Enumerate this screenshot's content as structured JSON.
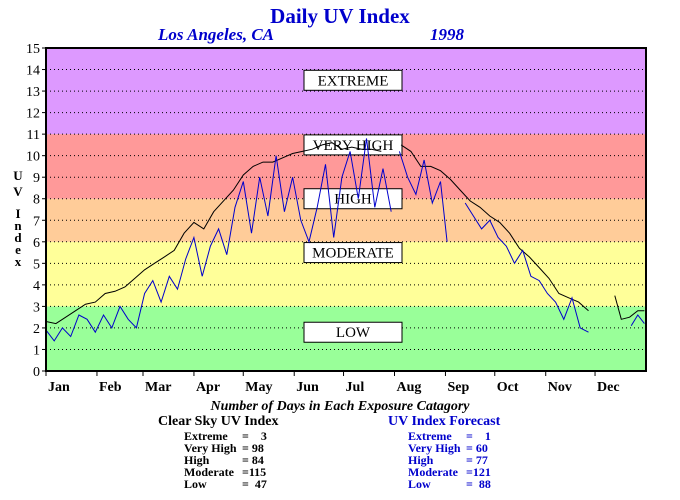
{
  "chart_data": {
    "type": "line",
    "title": "Daily UV Index",
    "location": "Los Angeles, CA",
    "year": "1998",
    "ylabel": "U V Index",
    "ylim": [
      0,
      15
    ],
    "yticks": [
      0,
      1,
      2,
      3,
      4,
      5,
      6,
      7,
      8,
      9,
      10,
      11,
      12,
      13,
      14,
      15
    ],
    "xlim": [
      0,
      365
    ],
    "months": [
      "Jan",
      "Feb",
      "Mar",
      "Apr",
      "May",
      "Jun",
      "Jul",
      "Aug",
      "Sep",
      "Oct",
      "Nov",
      "Dec"
    ],
    "month_start_days": [
      0,
      31,
      59,
      90,
      120,
      151,
      181,
      212,
      243,
      273,
      304,
      334
    ],
    "bands": [
      {
        "name": "LOW",
        "from": 0,
        "to": 3,
        "color": "#99ff99",
        "label_y": 1.8
      },
      {
        "name": "MODERATE",
        "from": 3,
        "to": 6,
        "color": "#ffff99",
        "label_y": 5.5
      },
      {
        "name": "HIGH",
        "from": 6,
        "to": 8,
        "color": "#ffcc99",
        "label_y": 8.0
      },
      {
        "name": "VERY HIGH",
        "from": 8,
        "to": 11,
        "color": "#ff9999",
        "label_y": 10.5
      },
      {
        "name": "EXTREME",
        "from": 11,
        "to": 15,
        "color": "#dd99ff",
        "label_y": 13.5
      }
    ],
    "series": [
      {
        "name": "Clear Sky UV Index",
        "color": "#000000",
        "points": [
          [
            0,
            2.3
          ],
          [
            6,
            2.2
          ],
          [
            12,
            2.5
          ],
          [
            18,
            2.8
          ],
          [
            24,
            3.1
          ],
          [
            30,
            3.2
          ],
          [
            36,
            3.6
          ],
          [
            42,
            3.7
          ],
          [
            48,
            3.9
          ],
          [
            54,
            4.3
          ],
          [
            60,
            4.7
          ],
          [
            66,
            5.0
          ],
          [
            72,
            5.3
          ],
          [
            78,
            5.6
          ],
          [
            84,
            6.4
          ],
          [
            90,
            6.9
          ],
          [
            96,
            6.6
          ],
          [
            102,
            7.4
          ],
          [
            108,
            7.9
          ],
          [
            114,
            8.4
          ],
          [
            120,
            9.1
          ],
          [
            126,
            9.5
          ],
          [
            132,
            9.7
          ],
          [
            138,
            9.7
          ],
          [
            144,
            9.9
          ],
          [
            150,
            10.1
          ],
          [
            156,
            10.2
          ],
          [
            162,
            10.3
          ],
          [
            168,
            10.5
          ],
          [
            174,
            10.6
          ],
          [
            180,
            10.3
          ],
          [
            186,
            10.4
          ],
          [
            192,
            10.3
          ],
          [
            198,
            10.3
          ],
          [
            204,
            10.2
          ],
          [
            212,
            null
          ],
          [
            216,
            10.5
          ],
          [
            222,
            10.2
          ],
          [
            228,
            9.5
          ],
          [
            234,
            9.5
          ],
          [
            240,
            9.3
          ],
          [
            246,
            8.9
          ],
          [
            252,
            8.4
          ],
          [
            258,
            7.9
          ],
          [
            264,
            7.6
          ],
          [
            270,
            7.2
          ],
          [
            276,
            6.9
          ],
          [
            282,
            6.4
          ],
          [
            288,
            5.7
          ],
          [
            294,
            5.3
          ],
          [
            300,
            4.8
          ],
          [
            306,
            4.3
          ],
          [
            312,
            3.6
          ],
          [
            318,
            3.4
          ],
          [
            324,
            3.2
          ],
          [
            330,
            2.8
          ],
          [
            335,
            null
          ],
          [
            346,
            3.5
          ],
          [
            350,
            2.4
          ],
          [
            355,
            2.5
          ],
          [
            360,
            2.8
          ],
          [
            364,
            2.8
          ]
        ]
      },
      {
        "name": "UV Index Forecast",
        "color": "#0000cc",
        "points": [
          [
            0,
            1.9
          ],
          [
            5,
            1.4
          ],
          [
            10,
            2.0
          ],
          [
            15,
            1.6
          ],
          [
            20,
            2.6
          ],
          [
            25,
            2.4
          ],
          [
            30,
            1.8
          ],
          [
            35,
            2.6
          ],
          [
            40,
            2.0
          ],
          [
            45,
            3.0
          ],
          [
            50,
            2.4
          ],
          [
            55,
            2.0
          ],
          [
            60,
            3.6
          ],
          [
            65,
            4.2
          ],
          [
            70,
            3.2
          ],
          [
            75,
            4.4
          ],
          [
            80,
            3.8
          ],
          [
            85,
            5.2
          ],
          [
            90,
            6.2
          ],
          [
            95,
            4.4
          ],
          [
            100,
            5.8
          ],
          [
            105,
            6.6
          ],
          [
            110,
            5.4
          ],
          [
            115,
            7.6
          ],
          [
            120,
            8.8
          ],
          [
            125,
            6.4
          ],
          [
            130,
            9.0
          ],
          [
            135,
            7.2
          ],
          [
            140,
            10.0
          ],
          [
            145,
            7.4
          ],
          [
            150,
            9.0
          ],
          [
            155,
            7.0
          ],
          [
            160,
            6.0
          ],
          [
            165,
            7.6
          ],
          [
            170,
            9.6
          ],
          [
            175,
            6.2
          ],
          [
            180,
            9.0
          ],
          [
            185,
            10.2
          ],
          [
            190,
            8.0
          ],
          [
            195,
            10.8
          ],
          [
            200,
            7.6
          ],
          [
            205,
            9.4
          ],
          [
            210,
            7.4
          ],
          [
            212,
            null
          ],
          [
            215,
            10.2
          ],
          [
            220,
            9.0
          ],
          [
            225,
            8.2
          ],
          [
            230,
            9.8
          ],
          [
            235,
            7.8
          ],
          [
            240,
            8.8
          ],
          [
            244,
            6.0
          ],
          [
            250,
            null
          ],
          [
            255,
            7.8
          ],
          [
            260,
            7.2
          ],
          [
            265,
            6.6
          ],
          [
            270,
            7.0
          ],
          [
            275,
            6.2
          ],
          [
            280,
            5.8
          ],
          [
            285,
            5.0
          ],
          [
            290,
            5.6
          ],
          [
            295,
            4.4
          ],
          [
            300,
            4.2
          ],
          [
            305,
            3.6
          ],
          [
            310,
            3.2
          ],
          [
            315,
            2.4
          ],
          [
            320,
            3.4
          ],
          [
            325,
            2.0
          ],
          [
            330,
            1.8
          ],
          [
            335,
            null
          ],
          [
            342,
            2.2
          ],
          [
            352,
            null
          ],
          [
            356,
            2.1
          ],
          [
            360,
            2.6
          ],
          [
            364,
            2.2
          ]
        ]
      }
    ],
    "footnote_title": "Number of Days in Each Exposure Catagory",
    "stats": [
      {
        "title": "Clear Sky UV Index",
        "color": "#000000",
        "rows": [
          {
            "label": "Extreme",
            "value": "=    3"
          },
          {
            "label": "Very High",
            "value": "= 98"
          },
          {
            "label": "High",
            "value": "= 84"
          },
          {
            "label": "Moderate",
            "value": "=115"
          },
          {
            "label": "Low",
            "value": "=  47"
          }
        ]
      },
      {
        "title": "UV Index Forecast",
        "color": "#0000cc",
        "rows": [
          {
            "label": "Extreme",
            "value": "=    1"
          },
          {
            "label": "Very High",
            "value": "= 60"
          },
          {
            "label": "High",
            "value": "= 77"
          },
          {
            "label": "Moderate",
            "value": "=121"
          },
          {
            "label": "Low",
            "value": "=  88"
          }
        ]
      }
    ]
  }
}
